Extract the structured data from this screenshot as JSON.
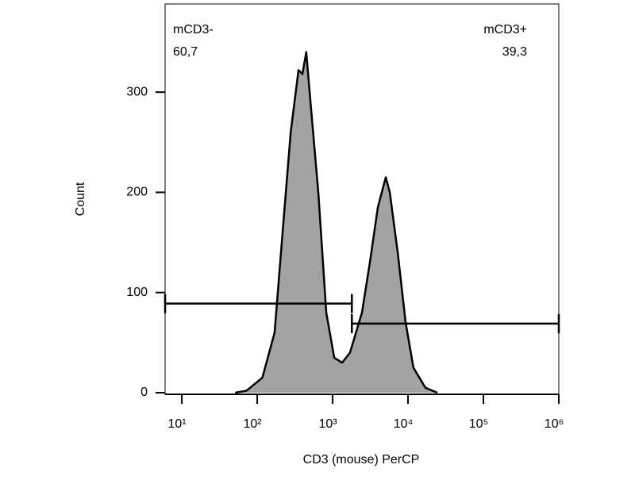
{
  "chart_data": {
    "type": "area",
    "x_label": "CD3 (mouse) PerCP",
    "y_label": "Count",
    "x_scale": "log",
    "xlim": [
      6,
      1000000
    ],
    "ylim": [
      0,
      388
    ],
    "xticks": [
      {
        "value": 10,
        "label": "10¹"
      },
      {
        "value": 100,
        "label": "10²"
      },
      {
        "value": 1000,
        "label": "10³"
      },
      {
        "value": 10000,
        "label": "10⁴"
      },
      {
        "value": 100000,
        "label": "10⁵"
      },
      {
        "value": 1000000,
        "label": "10⁶"
      }
    ],
    "yticks": [
      0,
      100,
      200,
      300
    ],
    "series": [
      {
        "color": "#a3a3a3",
        "x": [
          51,
          72,
          117,
          170,
          217,
          278,
          353,
          398,
          447,
          509,
          646,
          824,
          1050,
          1337,
          1700,
          2450,
          3120,
          3980,
          5070,
          5730,
          7300,
          9300,
          11800,
          17000,
          24500
        ],
        "values": [
          0,
          2,
          15,
          60,
          160,
          260,
          322,
          318,
          340,
          290,
          200,
          80,
          35,
          30,
          40,
          80,
          130,
          185,
          215,
          200,
          140,
          70,
          25,
          5,
          0
        ]
      }
    ],
    "gates": [
      {
        "name": "mCD3-",
        "label": "60,7",
        "x": [
          6,
          1800
        ],
        "y": 89
      },
      {
        "name": "mCD3+",
        "label": "39,3",
        "x": [
          1800,
          1000000
        ],
        "y": 69
      }
    ]
  }
}
